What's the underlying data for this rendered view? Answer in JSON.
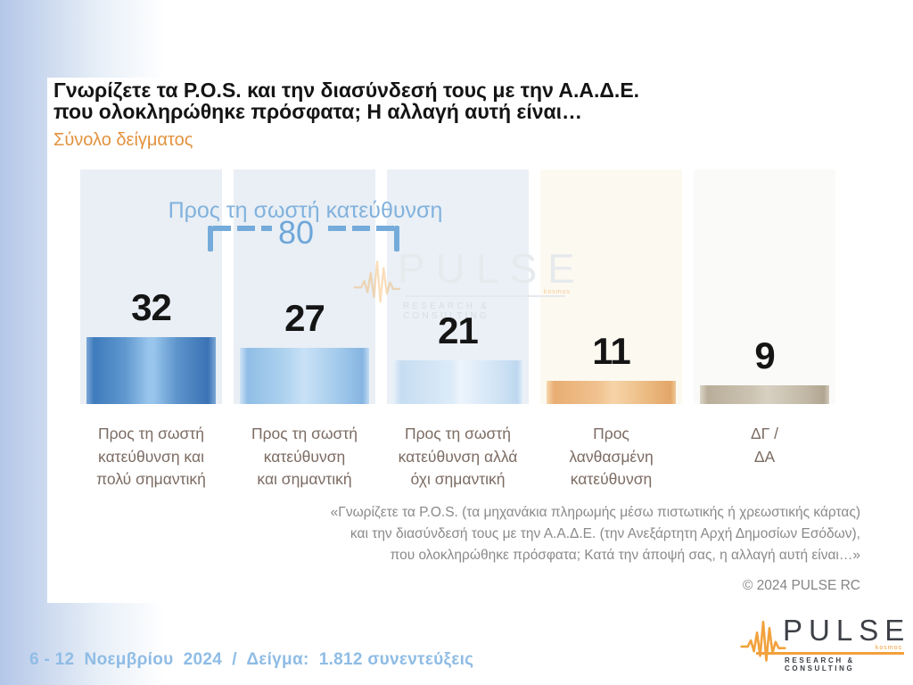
{
  "header": {
    "title_line1": "Γνωρίζετε τα P.O.S. και την διασύνδεσή τους με την Α.Α.Δ.Ε.",
    "title_line2": "που ολοκληρώθηκε πρόσφατα; Η αλλαγή αυτή είναι…",
    "subtitle": "Σύνολο δείγματος"
  },
  "chart_data": {
    "type": "bar",
    "title": "Γνωρίζετε τα P.O.S. και την διασύνδεσή τους με την Α.Α.Δ.Ε. που ολοκληρώθηκε πρόσφατα; Η αλλαγή αυτή είναι…",
    "categories": [
      "Προς τη σωστή\nκατεύθυνση και\nπολύ σημαντική",
      "Προς τη σωστή\nκατεύθυνση\nκαι σημαντική",
      "Προς τη σωστή\nκατεύθυνση αλλά\nόχι σημαντική",
      "Προς\nλανθασμένη\nκατεύθυνση",
      "ΔΓ /\nΔΑ"
    ],
    "values": [
      32,
      27,
      21,
      11,
      9
    ],
    "ylim": [
      0,
      115
    ],
    "grid": false,
    "annotation": {
      "label": "Προς τη σωστή κατεύθυνση",
      "value": 80,
      "covers_categories": [
        0,
        1,
        2
      ]
    },
    "panel_colors": [
      "#e9eff5",
      "#e9eff5",
      "#eaf0f6",
      "#fcf9f0",
      "#fafaf8"
    ],
    "bar_gradients": [
      "90deg,#7aa7d6 0%,#3e7bbc 6%,#6098cf 30%,#98c5ec 48%,#98c5ec 52%,#5d94cb 70%,#3a73b5 94%,#7aa7d6 100%",
      "90deg,#cfe2f5 0%,#90bee6 6%,#abd0ee 32%,#c8e1f6 50%,#a4cbeb 75%,#86b5e1 95%,#c2dbf2 100%",
      "90deg,#e8f1fa 0%,#c6ddf2 6%,#dcebf8 45%,#ecf4fc 52%,#cfe3f4 82%,#bed8ef 96%,#dfedf9 100%",
      "90deg,#f6d7ac 0%,#e8ae72 6%,#f0c290 40%,#f6d4a8 52%,#eab87e 80%,#e2a668 96%,#f0c898 100%",
      "90deg,#dcd6c8 0%,#b9ae9a 6%,#ccc3b2 40%,#d8d0c2 52%,#c3baa8 80%,#b1a691 96%,#d2cabb 100%"
    ],
    "accent_blue": "#75abda"
  },
  "footnote": {
    "text": "«Γνωρίζετε τα P.O.S. (τα μηχανάκια πληρωμής μέσω πιστωτικής ή χρεωστικής κάρτας)\nκαι την διασύνδεσή τους με την Α.Α.Δ.Ε. (την Ανεξάρτητη Αρχή Δημοσίων Εσόδων),\nπου ολοκληρώθηκε πρόσφατα; Κατά την άποψή σας, η αλλαγή αυτή είναι…»"
  },
  "copyright": "© 2024 PULSE RC",
  "footer": {
    "date_sample": "6 - 12  Νοεμβρίου  2024  /  Δείγμα:  1.812 συνεντεύξεις"
  },
  "logo": {
    "name": "PULSE",
    "tagline": "RESEARCH & CONSULTING",
    "sub_mark": "kosmos",
    "orange": "#f2a13c"
  },
  "colors": {
    "page_gradient_left": "#b4c7e8",
    "title_text": "#141414",
    "subtitle_orange": "#e2923e",
    "category_text": "#7c6c63",
    "footer_blue": "#8fbce5"
  }
}
